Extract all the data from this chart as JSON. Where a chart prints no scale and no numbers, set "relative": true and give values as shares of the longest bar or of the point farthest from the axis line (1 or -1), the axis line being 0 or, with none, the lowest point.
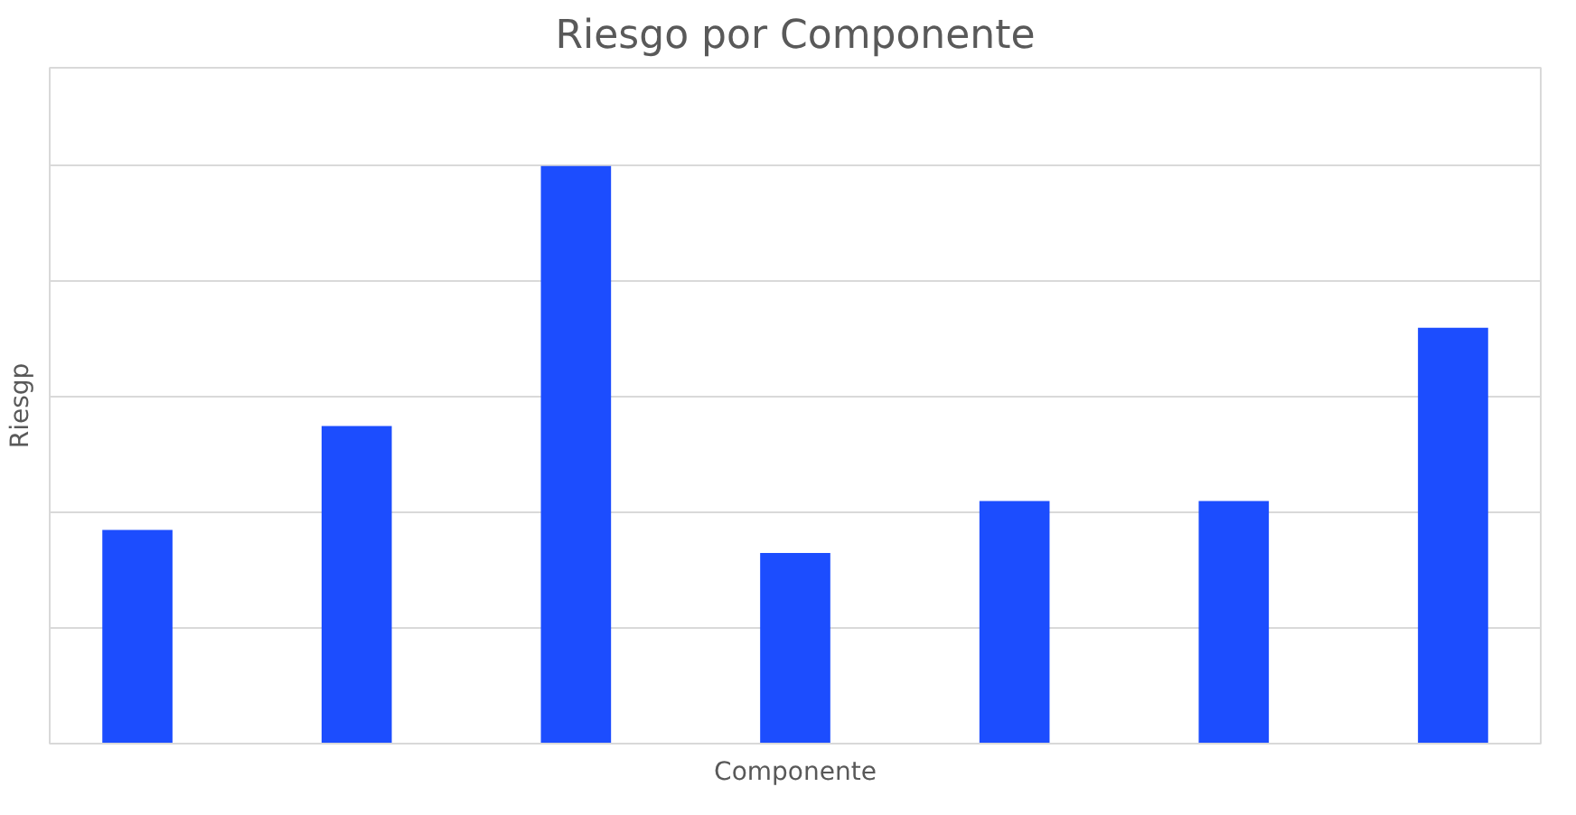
{
  "chart_data": {
    "type": "bar",
    "title": "Riesgo por Componente",
    "xlabel": "Componente",
    "ylabel": "Riesgp",
    "categories": [
      null,
      null,
      null,
      null,
      null,
      null,
      null
    ],
    "values": [
      0.37,
      0.55,
      1,
      0.33,
      0.42,
      0.42,
      0.72
    ],
    "color": "#1c4dfe",
    "relative": true,
    "grid": "y"
  }
}
